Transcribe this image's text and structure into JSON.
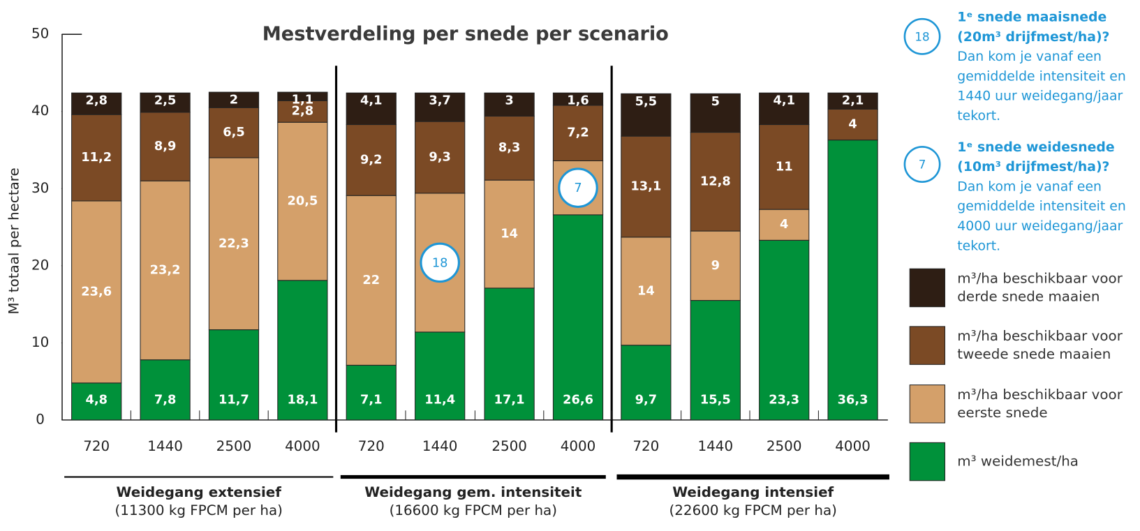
{
  "chart_data": {
    "type": "stacked_bar",
    "title": "Mestverdeling per snede per scenario",
    "y_label": "M³ totaal per hectare",
    "ylim": [
      0,
      50
    ],
    "yticks": [
      0,
      10,
      20,
      30,
      40,
      50
    ],
    "categories": [
      "720",
      "1440",
      "2500",
      "4000",
      "720",
      "1440",
      "2500",
      "4000",
      "720",
      "1440",
      "2500",
      "4000"
    ],
    "groups": [
      {
        "name": "Weidegang extensief",
        "subtitle": "(11300 kg FPCM per ha)"
      },
      {
        "name": "Weidegang gem. intensiteit",
        "subtitle": "(16600 kg FPCM per ha)"
      },
      {
        "name": "Weidegang intensief",
        "subtitle": "(22600 kg FPCM per ha)"
      }
    ],
    "series": [
      {
        "name": "m³ weidemest/ha",
        "color": "#00913a",
        "values": [
          4.8,
          7.8,
          11.7,
          18.1,
          7.1,
          11.4,
          17.1,
          26.6,
          9.7,
          15.5,
          23.3,
          36.3
        ],
        "value_labels": [
          "4,8",
          "7,8",
          "11,7",
          "18,1",
          "7,1",
          "11,4",
          "17,1",
          "26,6",
          "9,7",
          "15,5",
          "23,3",
          "36,3"
        ]
      },
      {
        "name": "m³/ha beschikbaar voor eerste snede",
        "color": "#d4a06a",
        "values": [
          23.6,
          23.2,
          22.3,
          20.5,
          22,
          18,
          14,
          7,
          14,
          9,
          4,
          null
        ],
        "value_labels": [
          "23,6",
          "23,2",
          "22,3",
          "20,5",
          "22",
          "18",
          "14",
          "7",
          "14",
          "9",
          "4",
          null
        ],
        "circled": [
          false,
          false,
          false,
          false,
          false,
          true,
          false,
          true,
          false,
          false,
          false,
          false
        ]
      },
      {
        "name": "m³/ha beschikbaar voor tweede snede maaien",
        "color": "#7b4a25",
        "values": [
          11.2,
          8.9,
          6.5,
          2.8,
          9.2,
          9.3,
          8.3,
          7.2,
          13.1,
          12.8,
          11,
          4
        ],
        "value_labels": [
          "11,2",
          "8,9",
          "6,5",
          "2,8",
          "9,2",
          "9,3",
          "8,3",
          "7,2",
          "13,1",
          "12,8",
          "11",
          "4"
        ]
      },
      {
        "name": "m³/ha beschikbaar voor derde snede maaien",
        "color": "#2e1e14",
        "values": [
          2.8,
          2.5,
          2,
          1.1,
          4.1,
          3.7,
          3,
          1.6,
          5.5,
          5,
          4.1,
          2.1
        ],
        "value_labels": [
          "2,8",
          "2,5",
          "2",
          "1,1",
          "4,1",
          "3,7",
          "3",
          "1,6",
          "5,5",
          "5",
          "4,1",
          "2,1"
        ]
      }
    ],
    "annotations": [
      {
        "marker": "18",
        "title": [
          "1ᵉ snede maaisnede",
          "(20m³ drijfmest/ha)?"
        ],
        "text": [
          "Dan kom je vanaf een",
          "gemiddelde intensiteit en",
          "1440 uur weidegang/jaar",
          "tekort."
        ]
      },
      {
        "marker": "7",
        "title": [
          "1ᵉ snede weidesnede",
          "(10m³ drijfmest/ha)?"
        ],
        "text": [
          "Dan kom je vanaf een",
          "gemiddelde intensiteit en",
          "4000 uur weidegang/jaar",
          "tekort."
        ]
      }
    ]
  }
}
